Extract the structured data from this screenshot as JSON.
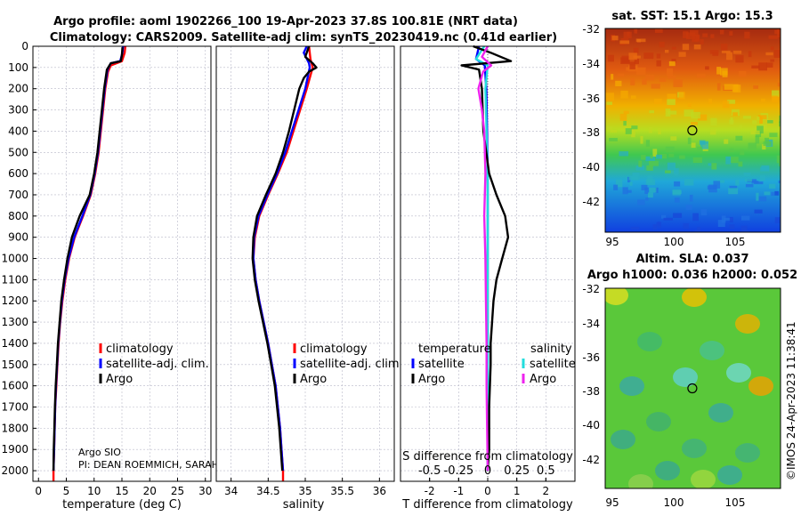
{
  "header": {
    "title_line1": "Argo profile: aoml 1902266_100 19-Apr-2023 37.8S 100.81E (NRT data)",
    "title_line2": "Climatology: CARS2009. Satellite-adj clim: synTS_20230419.nc (0.41d earlier)"
  },
  "colors": {
    "climatology": "#ff0000",
    "satellite": "#0000ff",
    "argo": "#000000",
    "sat_salinity": "#22dddd",
    "argo_salinity": "#ee22ee",
    "grid": "#b8b8c8"
  },
  "chart_data": [
    {
      "id": "temperature",
      "type": "line",
      "xlabel": "temperature (deg C)",
      "ylabel": "depth",
      "xlim": [
        -1,
        31
      ],
      "ylim": [
        2050,
        0
      ],
      "xticks": [
        0,
        5,
        10,
        15,
        20,
        25,
        30
      ],
      "yticks": [
        0,
        100,
        200,
        300,
        400,
        500,
        600,
        700,
        800,
        900,
        1000,
        1100,
        1200,
        1300,
        1400,
        1500,
        1600,
        1700,
        1800,
        1900,
        2000
      ],
      "legend": [
        "climatology",
        "satellite-adj. clim.",
        "Argo"
      ],
      "legend_location": "lower-right",
      "annotations": [
        "Argo SIO",
        "PI: DEAN ROEMMICH, SARAH"
      ],
      "series": [
        {
          "name": "climatology",
          "color_key": "climatology",
          "points": [
            [
              15.6,
              0
            ],
            [
              15.5,
              30
            ],
            [
              15.0,
              70
            ],
            [
              13.0,
              90
            ],
            [
              12.5,
              120
            ],
            [
              12.0,
              200
            ],
            [
              11.6,
              300
            ],
            [
              11.2,
              400
            ],
            [
              10.8,
              500
            ],
            [
              10.2,
              600
            ],
            [
              9.4,
              700
            ],
            [
              8.0,
              800
            ],
            [
              6.5,
              900
            ],
            [
              5.5,
              1000
            ],
            [
              4.8,
              1100
            ],
            [
              4.3,
              1200
            ],
            [
              3.9,
              1300
            ],
            [
              3.6,
              1400
            ],
            [
              3.4,
              1500
            ],
            [
              3.2,
              1600
            ],
            [
              3.0,
              1700
            ],
            [
              2.9,
              1800
            ],
            [
              2.8,
              1900
            ],
            [
              2.7,
              2000
            ],
            [
              2.7,
              2050
            ]
          ]
        },
        {
          "name": "satellite-adj. clim.",
          "color_key": "satellite",
          "points": [
            [
              15.2,
              0
            ],
            [
              15.1,
              30
            ],
            [
              14.7,
              70
            ],
            [
              13.0,
              80
            ],
            [
              12.4,
              110
            ],
            [
              11.9,
              200
            ],
            [
              11.5,
              300
            ],
            [
              11.1,
              400
            ],
            [
              10.7,
              500
            ],
            [
              10.1,
              600
            ],
            [
              9.3,
              700
            ],
            [
              7.9,
              800
            ],
            [
              6.4,
              900
            ],
            [
              5.4,
              1000
            ],
            [
              4.7,
              1100
            ],
            [
              4.2,
              1200
            ],
            [
              3.85,
              1300
            ],
            [
              3.55,
              1400
            ],
            [
              3.35,
              1500
            ],
            [
              3.15,
              1600
            ],
            [
              3.0,
              1700
            ],
            [
              2.9,
              1800
            ],
            [
              2.8,
              1900
            ],
            [
              2.7,
              2000
            ]
          ]
        },
        {
          "name": "Argo",
          "color_key": "argo",
          "points": [
            [
              15.1,
              5
            ],
            [
              15.0,
              40
            ],
            [
              14.8,
              70
            ],
            [
              13.0,
              80
            ],
            [
              12.3,
              110
            ],
            [
              11.8,
              200
            ],
            [
              11.4,
              300
            ],
            [
              11.0,
              400
            ],
            [
              10.6,
              500
            ],
            [
              10.0,
              600
            ],
            [
              9.2,
              700
            ],
            [
              7.4,
              800
            ],
            [
              6.0,
              900
            ],
            [
              5.2,
              1000
            ],
            [
              4.6,
              1100
            ],
            [
              4.1,
              1200
            ],
            [
              3.8,
              1300
            ],
            [
              3.5,
              1400
            ],
            [
              3.3,
              1500
            ],
            [
              3.1,
              1600
            ],
            [
              2.95,
              1700
            ],
            [
              2.85,
              1800
            ],
            [
              2.75,
              1900
            ],
            [
              2.7,
              2000
            ]
          ]
        }
      ]
    },
    {
      "id": "salinity",
      "type": "line",
      "xlabel": "salinity",
      "xlim": [
        33.8,
        36.2
      ],
      "ylim": [
        2050,
        0
      ],
      "xticks": [
        34,
        34.5,
        35,
        35.5,
        36
      ],
      "legend": [
        "climatology",
        "satellite-adj. clim.",
        "Argo"
      ],
      "legend_location": "lower-right",
      "series": [
        {
          "name": "climatology",
          "color_key": "climatology",
          "points": [
            [
              35.05,
              0
            ],
            [
              35.07,
              60
            ],
            [
              35.1,
              100
            ],
            [
              35.02,
              200
            ],
            [
              34.93,
              300
            ],
            [
              34.84,
              400
            ],
            [
              34.75,
              500
            ],
            [
              34.63,
              600
            ],
            [
              34.5,
              700
            ],
            [
              34.38,
              800
            ],
            [
              34.32,
              900
            ],
            [
              34.3,
              1000
            ],
            [
              34.33,
              1100
            ],
            [
              34.38,
              1200
            ],
            [
              34.44,
              1300
            ],
            [
              34.5,
              1400
            ],
            [
              34.55,
              1500
            ],
            [
              34.6,
              1600
            ],
            [
              34.63,
              1700
            ],
            [
              34.66,
              1800
            ],
            [
              34.68,
              1900
            ],
            [
              34.7,
              2000
            ],
            [
              34.7,
              2050
            ]
          ]
        },
        {
          "name": "satellite-adj. clim.",
          "color_key": "satellite",
          "points": [
            [
              35.02,
              0
            ],
            [
              34.98,
              30
            ],
            [
              35.05,
              80
            ],
            [
              35.06,
              100
            ],
            [
              35.0,
              200
            ],
            [
              34.91,
              300
            ],
            [
              34.82,
              400
            ],
            [
              34.73,
              500
            ],
            [
              34.62,
              600
            ],
            [
              34.49,
              700
            ],
            [
              34.37,
              800
            ],
            [
              34.31,
              900
            ],
            [
              34.3,
              1000
            ],
            [
              34.33,
              1100
            ],
            [
              34.38,
              1200
            ],
            [
              34.44,
              1300
            ],
            [
              34.5,
              1400
            ],
            [
              34.55,
              1500
            ],
            [
              34.6,
              1600
            ],
            [
              34.63,
              1700
            ],
            [
              34.66,
              1800
            ],
            [
              34.68,
              1900
            ],
            [
              34.7,
              2000
            ]
          ]
        },
        {
          "name": "Argo",
          "color_key": "argo",
          "points": [
            [
              35.05,
              0
            ],
            [
              35.0,
              50
            ],
            [
              35.1,
              80
            ],
            [
              35.15,
              100
            ],
            [
              35.05,
              120
            ],
            [
              34.98,
              150
            ],
            [
              34.92,
              200
            ],
            [
              34.85,
              300
            ],
            [
              34.78,
              400
            ],
            [
              34.7,
              500
            ],
            [
              34.6,
              600
            ],
            [
              34.47,
              700
            ],
            [
              34.35,
              800
            ],
            [
              34.3,
              900
            ],
            [
              34.29,
              1000
            ],
            [
              34.32,
              1100
            ],
            [
              34.37,
              1200
            ],
            [
              34.43,
              1300
            ],
            [
              34.49,
              1400
            ],
            [
              34.54,
              1500
            ],
            [
              34.59,
              1600
            ],
            [
              34.62,
              1700
            ],
            [
              34.65,
              1800
            ],
            [
              34.67,
              1900
            ],
            [
              34.69,
              2000
            ]
          ]
        }
      ]
    },
    {
      "id": "difference",
      "type": "line",
      "xlabel": "T difference from climatology",
      "x2label": "S difference from climatology",
      "xlim": [
        -3,
        3
      ],
      "x2lim": [
        -0.75,
        0.75
      ],
      "ylim": [
        2050,
        0
      ],
      "xticks": [
        -2,
        -1,
        0,
        1,
        2
      ],
      "x2ticks": [
        -0.5,
        -0.25,
        0,
        0.25,
        0.5
      ],
      "x2tick_labels": [
        "-0.5",
        "-0.25",
        "0",
        "0.25",
        "0.5"
      ],
      "legend_headers": [
        "temperature",
        "salinity"
      ],
      "legend_temperature": [
        "satellite",
        "Argo"
      ],
      "legend_salinity": [
        "satellite",
        "Argo"
      ],
      "series": [
        {
          "name": "T satellite",
          "axis": "T",
          "color_key": "satellite",
          "points": [
            [
              -0.3,
              0
            ],
            [
              -0.4,
              60
            ],
            [
              -0.1,
              90
            ],
            [
              -0.05,
              200
            ],
            [
              -0.02,
              400
            ],
            [
              0,
              600
            ],
            [
              0,
              800
            ],
            [
              0,
              1000
            ],
            [
              0,
              1200
            ],
            [
              0,
              1500
            ],
            [
              0,
              1800
            ],
            [
              0,
              2000
            ]
          ]
        },
        {
          "name": "S satellite",
          "axis": "S",
          "color_key": "sat_salinity",
          "points": [
            [
              -0.03,
              0
            ],
            [
              -0.1,
              60
            ],
            [
              0,
              90
            ],
            [
              -0.02,
              200
            ],
            [
              -0.01,
              400
            ],
            [
              0,
              600
            ],
            [
              0,
              800
            ],
            [
              0,
              1000
            ],
            [
              0,
              1200
            ],
            [
              0,
              1500
            ],
            [
              0,
              1800
            ],
            [
              0,
              2000
            ]
          ]
        },
        {
          "name": "T Argo",
          "axis": "T",
          "color_key": "argo",
          "points": [
            [
              -0.5,
              0
            ],
            [
              0.1,
              30
            ],
            [
              0.8,
              70
            ],
            [
              -0.9,
              90
            ],
            [
              -0.3,
              110
            ],
            [
              -0.2,
              200
            ],
            [
              -0.15,
              400
            ],
            [
              0.05,
              600
            ],
            [
              0.3,
              700
            ],
            [
              0.6,
              800
            ],
            [
              0.7,
              900
            ],
            [
              0.5,
              1000
            ],
            [
              0.3,
              1100
            ],
            [
              0.2,
              1200
            ],
            [
              0.15,
              1300
            ],
            [
              0.1,
              1400
            ],
            [
              0.1,
              1500
            ],
            [
              0.05,
              1700
            ],
            [
              0.05,
              1900
            ],
            [
              0,
              2000
            ]
          ]
        },
        {
          "name": "S Argo",
          "axis": "S",
          "color_key": "argo_salinity",
          "points": [
            [
              0,
              0
            ],
            [
              -0.05,
              50
            ],
            [
              0.03,
              90
            ],
            [
              -0.04,
              120
            ],
            [
              -0.08,
              200
            ],
            [
              -0.05,
              300
            ],
            [
              -0.03,
              400
            ],
            [
              -0.02,
              600
            ],
            [
              -0.03,
              800
            ],
            [
              -0.02,
              1000
            ],
            [
              -0.015,
              1200
            ],
            [
              -0.01,
              1400
            ],
            [
              -0.01,
              1600
            ],
            [
              -0.005,
              1800
            ],
            [
              0,
              2000
            ]
          ]
        }
      ]
    }
  ],
  "sst_map": {
    "title": "sat. SST: 15.1 Argo: 15.3",
    "lat_ticks": [
      "-32",
      "-34",
      "-36",
      "-38",
      "-40",
      "-42"
    ],
    "lon_ticks": [
      "95",
      "100",
      "105"
    ],
    "float_lon": 100.81,
    "float_lat": -37.8
  },
  "sla_map": {
    "title_line1": "Altim. SLA: 0.037",
    "title_line2": "Argo h1000: 0.036 h2000: 0.052",
    "lat_ticks": [
      "-32",
      "-34",
      "-36",
      "-38",
      "-40",
      "-42"
    ],
    "lon_ticks": [
      "95",
      "100",
      "105"
    ],
    "float_lon": 100.81,
    "float_lat": -37.8
  },
  "watermark": "©IMOS 24-Apr-2023 11:38:41"
}
